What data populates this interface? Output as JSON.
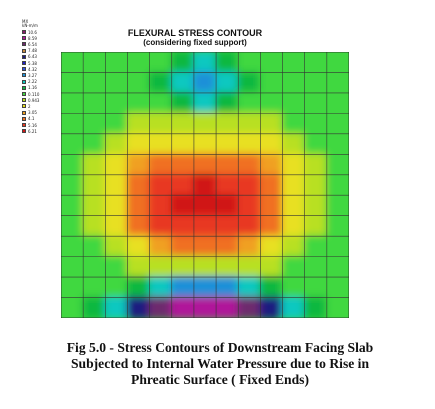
{
  "legend": {
    "header": [
      "MX",
      "kN-m/m"
    ],
    "values": [
      "10.6",
      "8.59",
      "6.54",
      "7.48",
      "6.43",
      "5.38",
      "4.32",
      "3.27",
      "2.22",
      "1.16",
      "0.110",
      "0.943",
      "2",
      "3.05",
      "4.1",
      "5.16",
      "6.21"
    ],
    "colors": [
      "#8b1a6b",
      "#b0179a",
      "#6e2a6e",
      "#c88a40",
      "#1a1a80",
      "#2020c8",
      "#3050e0",
      "#1e90d8",
      "#10c8c0",
      "#10b840",
      "#40d840",
      "#b8e020",
      "#e8e020",
      "#f0a020",
      "#f07020",
      "#e83820",
      "#d01818"
    ]
  },
  "title": {
    "line1": "FLEXURAL STRESS CONTOUR",
    "line2": "(considering fixed support)"
  },
  "chart_data": {
    "type": "heatmap",
    "title": "FLEXURAL STRESS CONTOUR",
    "subtitle": "(considering fixed support)",
    "grid": true,
    "columns": 13,
    "rows": 13,
    "colorscale_unit": "kN-m/m",
    "colorscale_values": [
      10.6,
      8.59,
      6.54,
      7.48,
      6.43,
      5.38,
      4.32,
      3.27,
      2.22,
      1.16,
      0.11,
      0.943,
      2,
      3.05,
      4.1,
      5.16,
      6.21
    ],
    "band_index_grid": [
      [
        10,
        10,
        10,
        10,
        10,
        9,
        8,
        9,
        10,
        10,
        10,
        10,
        10
      ],
      [
        10,
        10,
        10,
        10,
        9,
        8,
        7,
        8,
        9,
        10,
        10,
        10,
        10
      ],
      [
        10,
        10,
        10,
        10,
        10,
        9,
        8,
        9,
        10,
        10,
        10,
        10,
        10
      ],
      [
        10,
        10,
        10,
        11,
        11,
        11,
        11,
        11,
        11,
        11,
        10,
        10,
        10
      ],
      [
        10,
        10,
        11,
        12,
        12,
        12,
        12,
        12,
        12,
        12,
        11,
        10,
        10
      ],
      [
        10,
        11,
        12,
        13,
        14,
        14,
        14,
        14,
        14,
        13,
        12,
        11,
        10
      ],
      [
        10,
        11,
        12,
        14,
        15,
        15,
        16,
        15,
        15,
        14,
        12,
        11,
        10
      ],
      [
        10,
        11,
        12,
        14,
        15,
        16,
        16,
        16,
        15,
        14,
        12,
        11,
        10
      ],
      [
        10,
        11,
        12,
        14,
        15,
        15,
        15,
        15,
        15,
        14,
        12,
        11,
        10
      ],
      [
        10,
        10,
        11,
        12,
        13,
        14,
        14,
        14,
        13,
        12,
        11,
        10,
        10
      ],
      [
        10,
        10,
        10,
        11,
        11,
        11,
        11,
        11,
        11,
        11,
        10,
        10,
        10
      ],
      [
        10,
        10,
        10,
        9,
        8,
        7,
        7,
        7,
        8,
        9,
        10,
        10,
        10
      ],
      [
        10,
        9,
        8,
        4,
        2,
        1,
        1,
        1,
        2,
        4,
        8,
        9,
        10
      ]
    ]
  },
  "caption": {
    "line1": "Fig 5.0 - Stress Contours of Downstream Facing Slab",
    "line2": "Subjected to Internal Water Pressure due to Rise in",
    "line3": "Phreatic Surface ( Fixed Ends)"
  }
}
